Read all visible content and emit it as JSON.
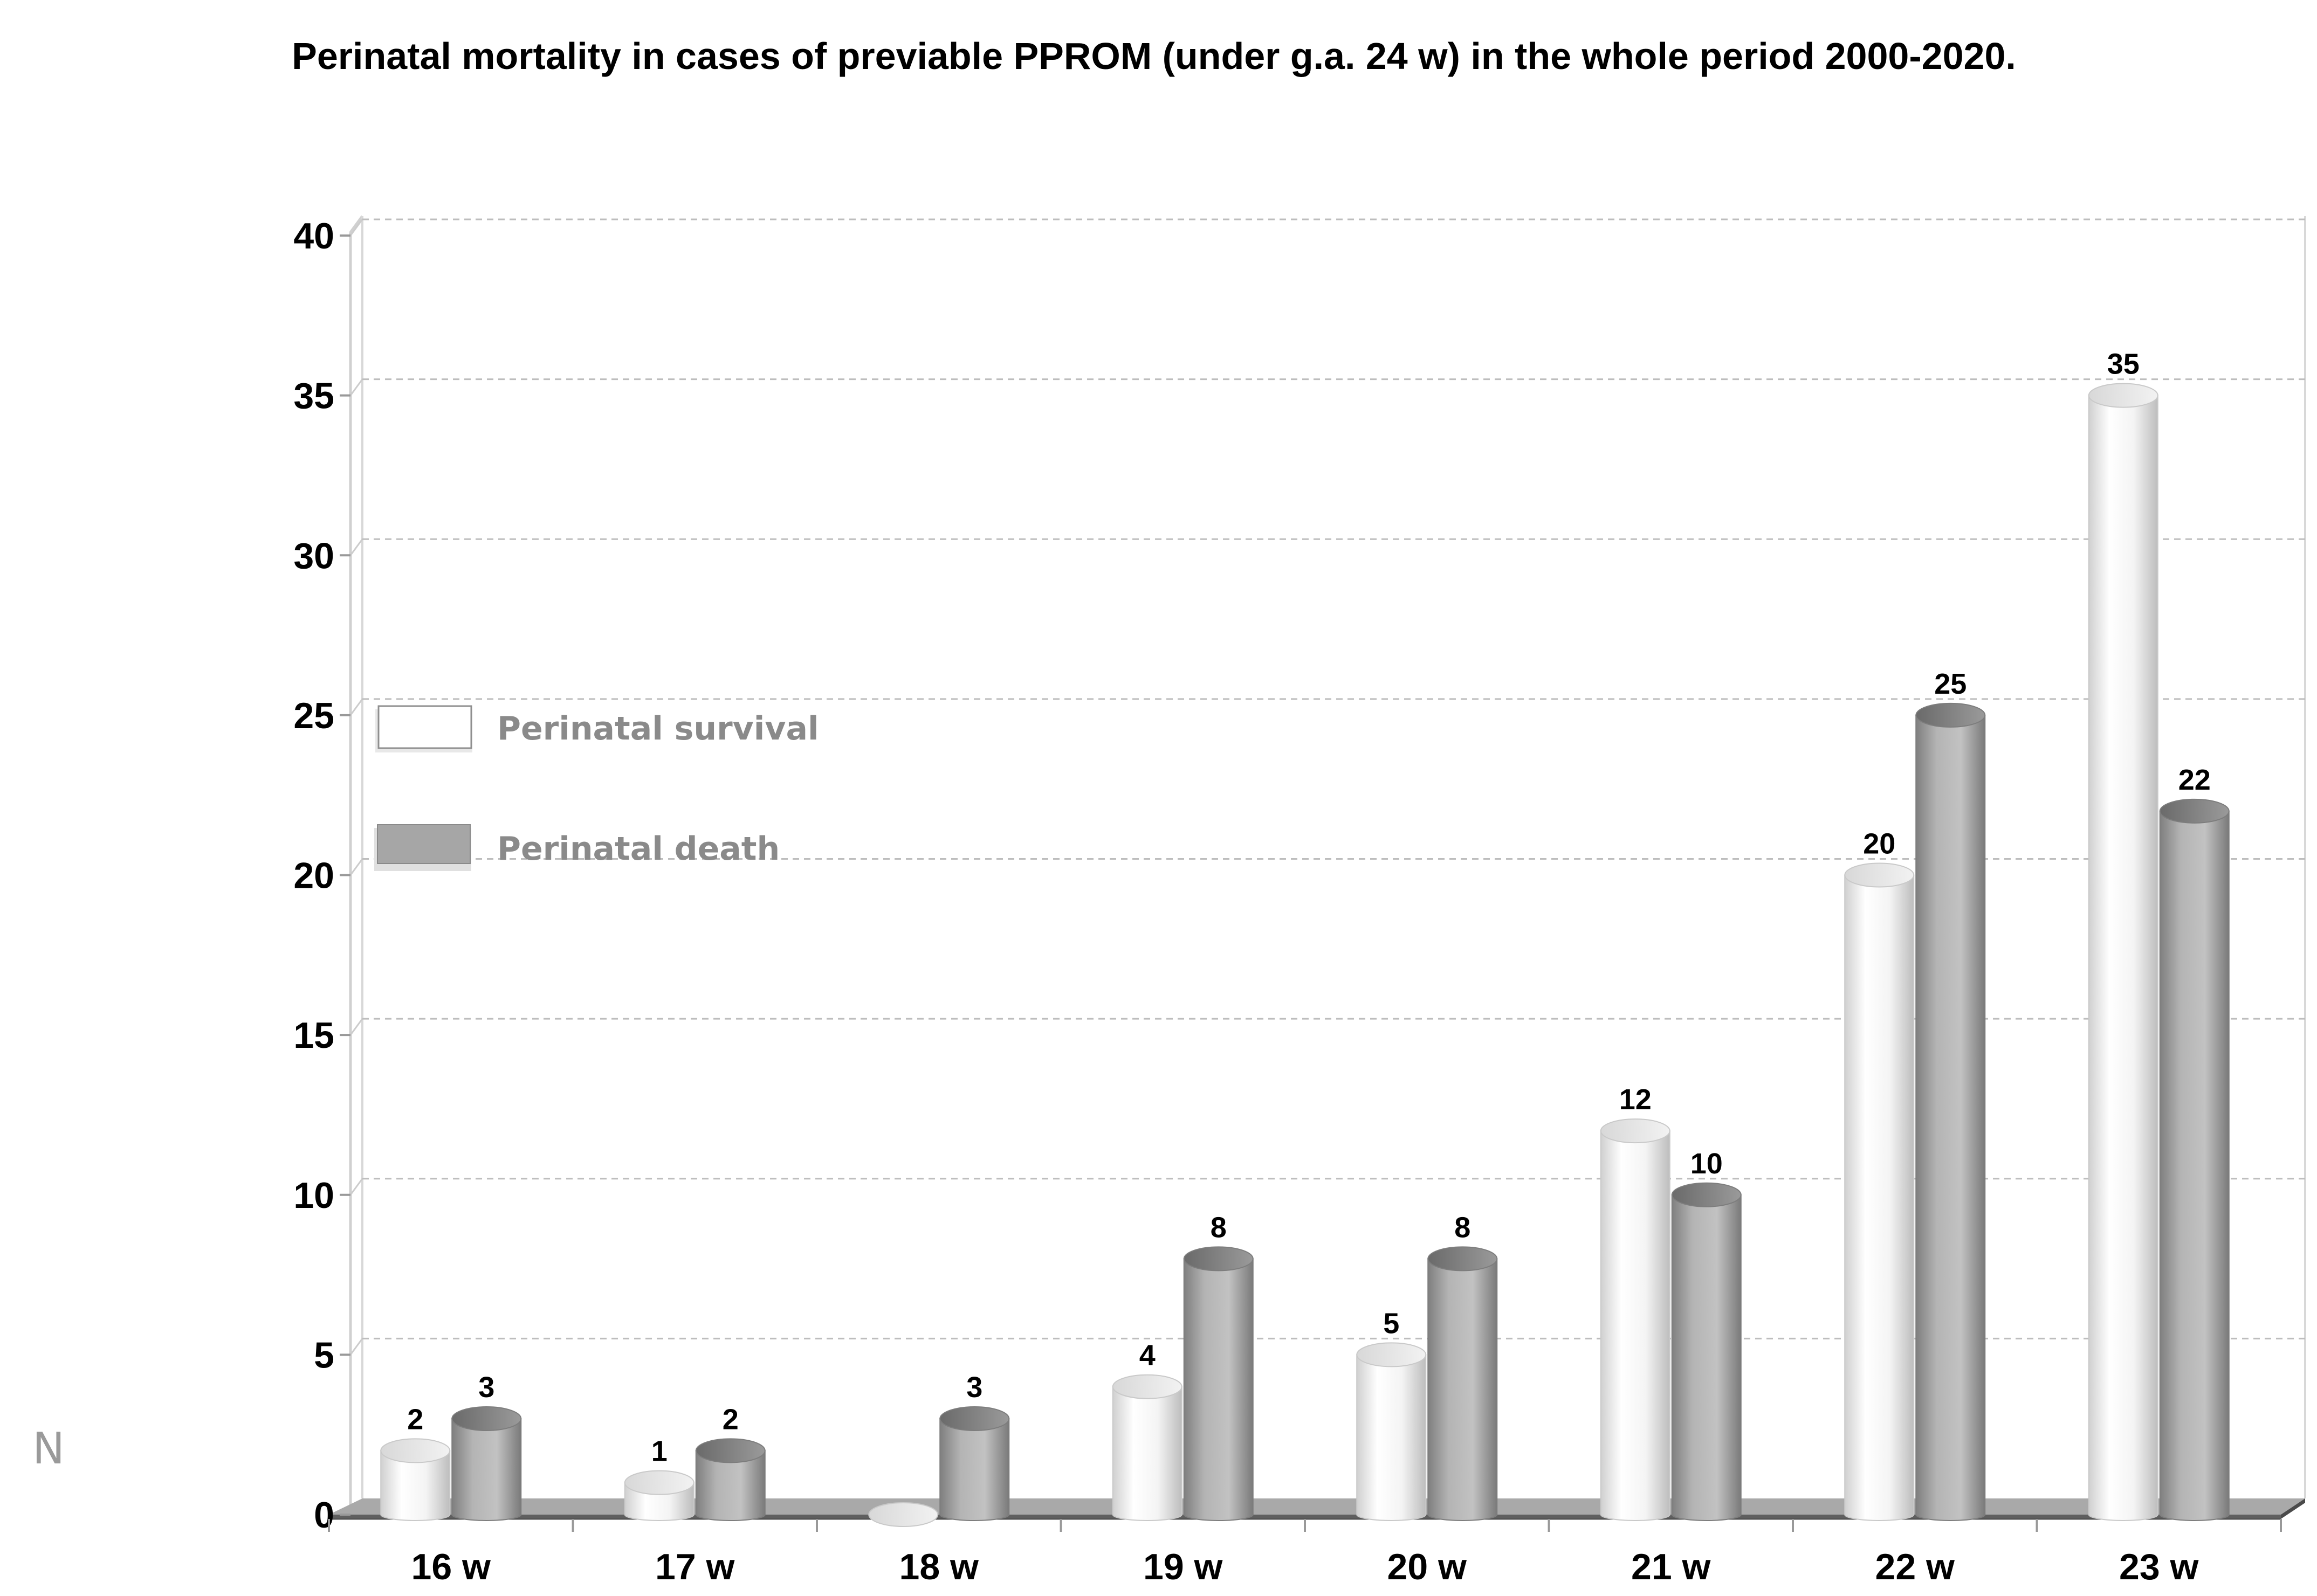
{
  "chart_data": {
    "type": "bar",
    "title": "Perinatal mortality in cases of previable PPROM (under g.a. 24 w) in the whole period 2000-2020.",
    "xlabel": "",
    "ylabel": "N",
    "ylim": [
      0,
      40
    ],
    "yticks": [
      0,
      5,
      10,
      15,
      20,
      25,
      30,
      35,
      40
    ],
    "categories": [
      "16 w",
      "17 w",
      "18 w",
      "19 w",
      "20 w",
      "21 w",
      "22 w",
      "23 w"
    ],
    "series": [
      {
        "name": "Perinatal survival",
        "values": [
          2,
          1,
          0,
          4,
          5,
          12,
          20,
          35
        ],
        "color": "#ffffff"
      },
      {
        "name": "Perinatal death",
        "values": [
          3,
          2,
          3,
          8,
          8,
          10,
          25,
          22
        ],
        "color": "#a6a6a6"
      }
    ],
    "data_labels_shown": [
      [
        true,
        true,
        false,
        true,
        true,
        true,
        true,
        true
      ],
      [
        true,
        true,
        true,
        true,
        true,
        true,
        true,
        true
      ]
    ],
    "grid": true,
    "legend_position": "left"
  }
}
